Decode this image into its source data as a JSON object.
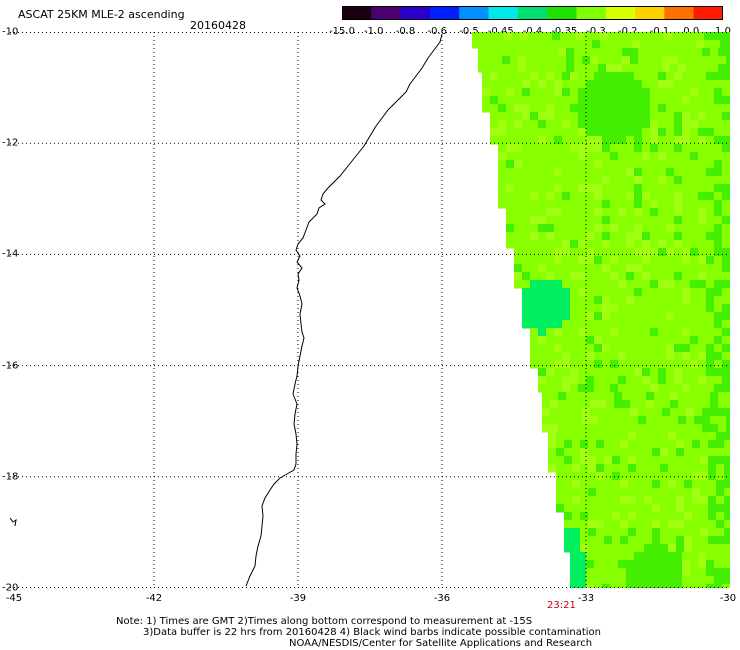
{
  "header": {
    "title": "ASCAT 25KM MLE-2 ascending",
    "date": "20160428"
  },
  "colorbar": {
    "colors": [
      "#1a0010",
      "#4a0070",
      "#2a00c8",
      "#0020ff",
      "#0090ff",
      "#00e8e8",
      "#00e070",
      "#20e000",
      "#80ff00",
      "#d8ff00",
      "#ffd000",
      "#ff7000",
      "#ff1a00"
    ],
    "labels": [
      "-15.0",
      "-1.0",
      "-0.8",
      "-0.6",
      "-0.5",
      "-0.45",
      "-0.4",
      "-0.35",
      "-0.3",
      "-0.2",
      "-0.1",
      "0.0",
      "1.0"
    ]
  },
  "map": {
    "lon_range": [
      -45,
      -30
    ],
    "lat_range": [
      -20,
      -10
    ],
    "y_ticks": [
      "-10",
      "-12",
      "-14",
      "-16",
      "-18",
      "-20"
    ],
    "x_ticks": [
      "-45",
      "-42",
      "-39",
      "-36",
      "-33",
      "-30"
    ],
    "time_label": "23:21",
    "swath_colors": {
      "base": "#88ff00",
      "green": "#44ee00",
      "teal": "#00ee60",
      "light": "#a0ff10"
    }
  },
  "notes": [
    "Note: 1) Times are GMT 2)Times along bottom correspond to measurement at -15S",
    "3)Data buffer is 22 hrs from 20160428 4) Black wind barbs indicate possible contamination",
    "NOAA/NESDIS/Center for Satellite Applications and Research"
  ]
}
